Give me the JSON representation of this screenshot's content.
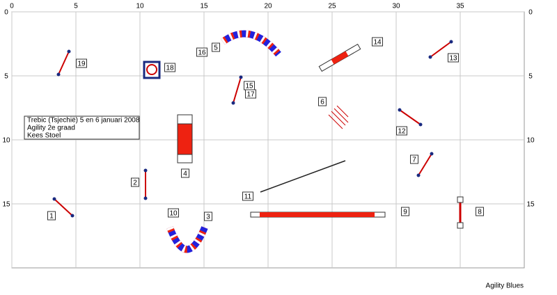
{
  "grid": {
    "x_labels": [
      0,
      5,
      10,
      15,
      20,
      25,
      30,
      35
    ],
    "y_labels": [
      0,
      5,
      10,
      15
    ]
  },
  "info": {
    "lines": [
      "Trebic (Tsjechië) 5 en 6 januari 2008",
      "Agility 2e graad",
      "Kees Stoel"
    ]
  },
  "obstacles": {
    "labels": [
      "1",
      "2",
      "3",
      "4",
      "5",
      "6",
      "7",
      "8",
      "9",
      "10",
      "11",
      "12",
      "13",
      "14",
      "15",
      "16",
      "17",
      "18",
      "19"
    ]
  },
  "footer": "Agility Blues"
}
